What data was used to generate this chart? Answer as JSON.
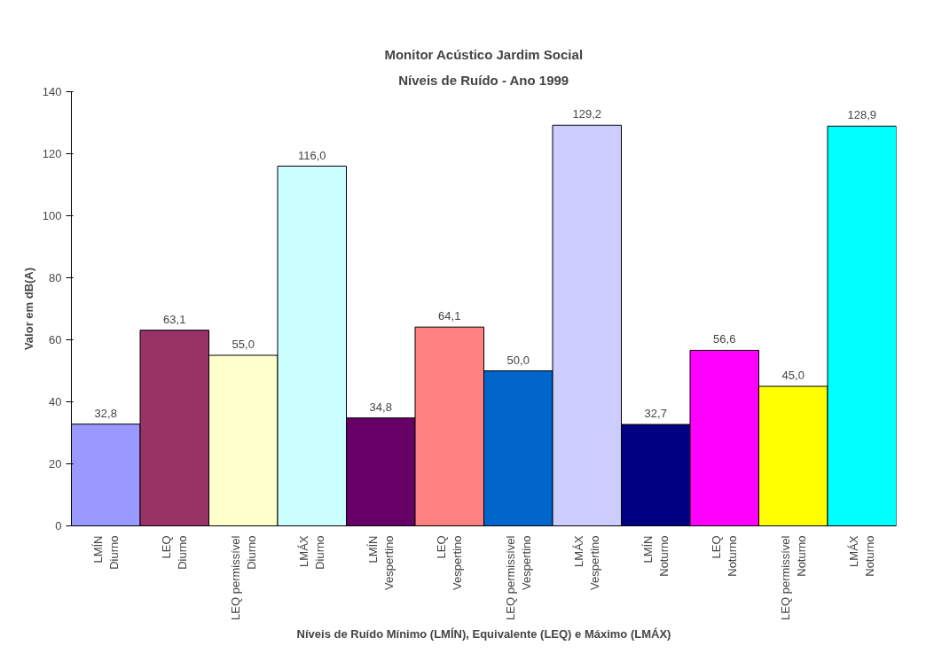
{
  "chart_data": {
    "type": "bar",
    "title": "Monitor Acústico Jardim Social",
    "subtitle": "Níveis de Ruído - Ano 1999",
    "xlabel": "Níveis de Ruído Mínimo (LMÍN), Equivalente (LEQ) e Máximo (LMÁX)",
    "ylabel": "Valor em dB(A)",
    "categories": [
      "LMÍN\nDiurno",
      "LEQ\nDiurno",
      "LEQ permissível\nDiurno",
      "LMÁX\nDiurno",
      "LMÍN\nVespertino",
      "LEQ\nVespertino",
      "LEQ permissível\nVespertino",
      "LMÁX\nVespertino",
      "LMÍN\nNoturno",
      "LEQ\nNoturno",
      "LEQ permissível\nNoturno",
      "LMÁX\nNoturno"
    ],
    "values": [
      32.8,
      63.1,
      55.0,
      116.0,
      34.8,
      64.1,
      50.0,
      129.2,
      32.7,
      56.6,
      45.0,
      128.9
    ],
    "value_labels": [
      "32,8",
      "63,1",
      "55,0",
      "116,0",
      "34,8",
      "64,1",
      "50,0",
      "129,2",
      "32,7",
      "56,6",
      "45,0",
      "128,9"
    ],
    "colors": [
      "#9999ff",
      "#993366",
      "#ffffcc",
      "#ccffff",
      "#660066",
      "#ff8080",
      "#0066cc",
      "#ccccff",
      "#000080",
      "#ff00ff",
      "#ffff00",
      "#00ffff"
    ],
    "ylim": [
      0,
      140
    ],
    "yticks": [
      0,
      20,
      40,
      60,
      80,
      100,
      120,
      140
    ],
    "grid": false
  }
}
